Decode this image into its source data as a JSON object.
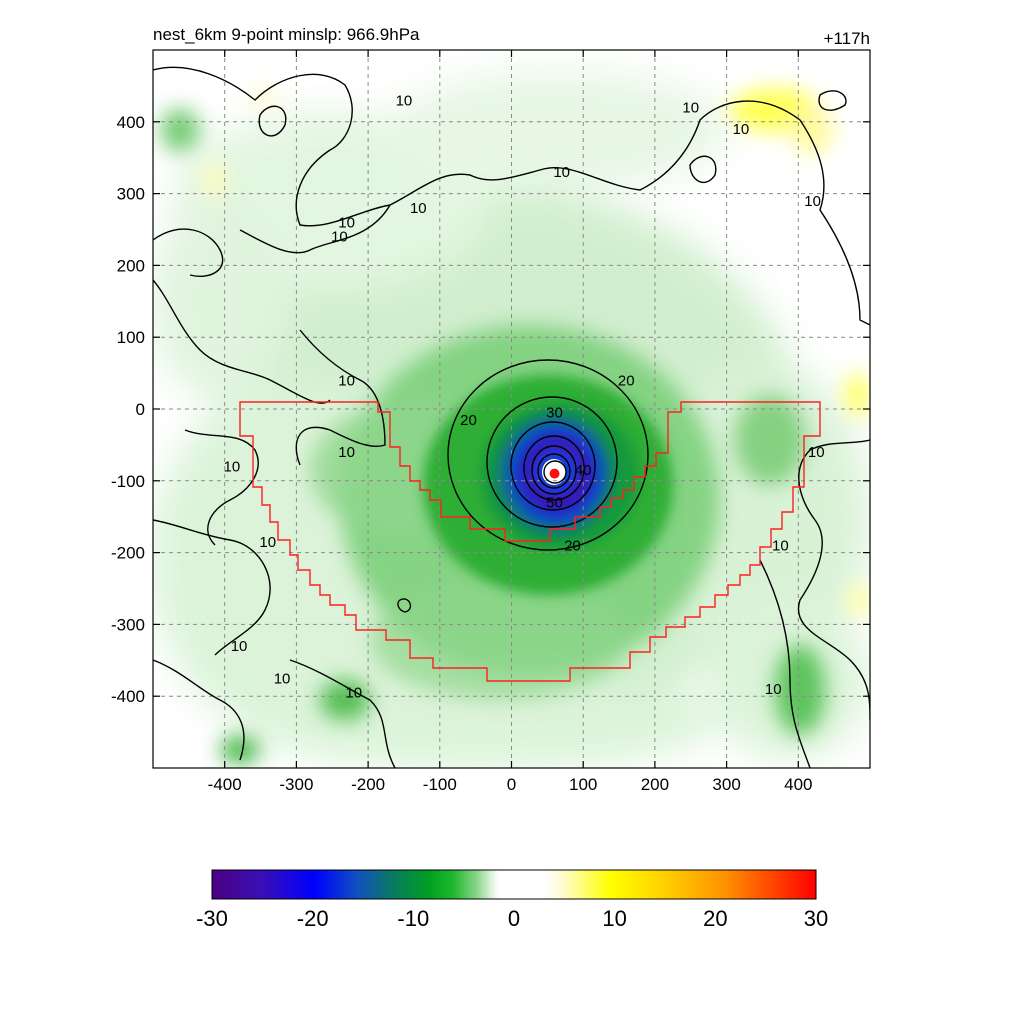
{
  "header": {
    "title": "nest_6km  9-point minslp: 966.9hPa",
    "time_label": "+117h"
  },
  "chart_data": {
    "type": "heatmap",
    "title": "nest_6km  9-point minslp: 966.9hPa",
    "time_label": "+117h",
    "xlabel": "",
    "ylabel": "",
    "xlim": [
      -500,
      500
    ],
    "ylim": [
      -500,
      500
    ],
    "x_ticks": [
      -400,
      -300,
      -200,
      -100,
      0,
      100,
      200,
      300,
      400
    ],
    "y_ticks": [
      -400,
      -300,
      -200,
      -100,
      0,
      100,
      200,
      300,
      400
    ],
    "x_tick_labels": [
      "-400",
      "-300",
      "-200",
      "-100",
      "0",
      "100",
      "200",
      "300",
      "400"
    ],
    "y_tick_labels": [
      "-400",
      "-300",
      "-200",
      "-100",
      "0",
      "100",
      "200",
      "300",
      "400"
    ],
    "grid": true,
    "storm_center": {
      "x": 60,
      "y": -90
    },
    "contour_levels": [
      10,
      20,
      30,
      40,
      50
    ],
    "contour_labels": [
      {
        "text": "10",
        "x": -150,
        "y": 430
      },
      {
        "text": "10",
        "x": 250,
        "y": 420
      },
      {
        "text": "10",
        "x": 320,
        "y": 390
      },
      {
        "text": "10",
        "x": 70,
        "y": 330
      },
      {
        "text": "10",
        "x": -130,
        "y": 280
      },
      {
        "text": "10",
        "x": -240,
        "y": 240
      },
      {
        "text": "10",
        "x": -230,
        "y": 260
      },
      {
        "text": "10",
        "x": 420,
        "y": 290
      },
      {
        "text": "10",
        "x": -230,
        "y": 40
      },
      {
        "text": "10",
        "x": -230,
        "y": -60
      },
      {
        "text": "10",
        "x": -390,
        "y": -80
      },
      {
        "text": "10",
        "x": -340,
        "y": -185
      },
      {
        "text": "10",
        "x": -380,
        "y": -330
      },
      {
        "text": "10",
        "x": -320,
        "y": -375
      },
      {
        "text": "10",
        "x": -220,
        "y": -395
      },
      {
        "text": "10",
        "x": 365,
        "y": -390
      },
      {
        "text": "10",
        "x": 375,
        "y": -190
      },
      {
        "text": "10",
        "x": 425,
        "y": -60
      },
      {
        "text": "20",
        "x": 160,
        "y": 40
      },
      {
        "text": "20",
        "x": -60,
        "y": -15
      },
      {
        "text": "20",
        "x": 85,
        "y": -190
      },
      {
        "text": "30",
        "x": 60,
        "y": -5
      },
      {
        "text": "40",
        "x": 100,
        "y": -85
      },
      {
        "text": "50",
        "x": 60,
        "y": -130
      }
    ],
    "colorbar": {
      "min": -30,
      "max": 30,
      "ticks": [
        -30,
        -20,
        -10,
        0,
        10,
        20,
        30
      ],
      "tick_labels": [
        "-30",
        "-20",
        "-10",
        "0",
        "10",
        "20",
        "30"
      ],
      "colors": [
        "#4b0082",
        "#0000ff",
        "#008b8b",
        "#00aa22",
        "#90d890",
        "#ffffff",
        "#ffff00",
        "#ffa500",
        "#ff0000"
      ]
    }
  }
}
